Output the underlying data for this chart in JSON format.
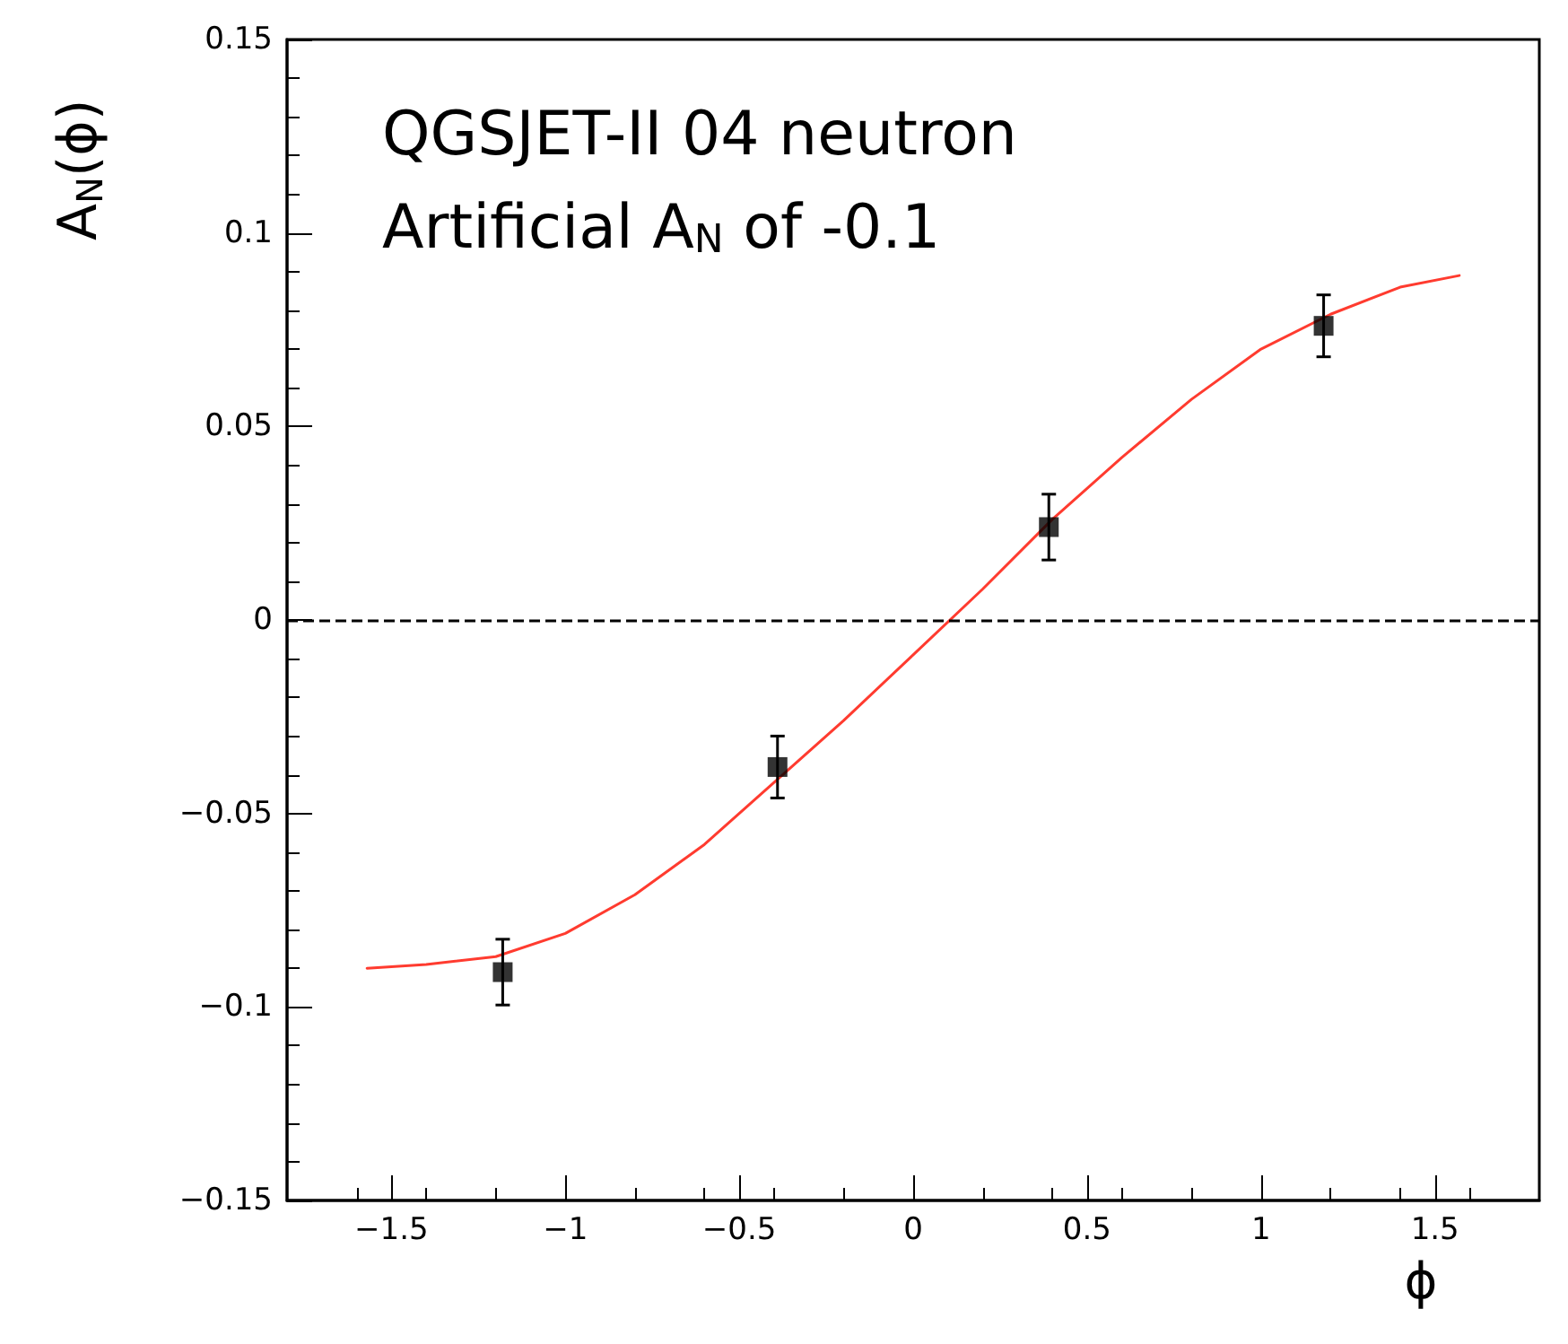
{
  "chart_data": {
    "type": "scatter",
    "xlabel": "ϕ",
    "ylabel": "A$_{N}$(ϕ)",
    "annotations": [
      "QGSJET-II 04 neutron",
      "Artificial A$_{N}$ of -0.1"
    ],
    "series": [
      {
        "color": "#000000",
        "marker": "square",
        "x": [
          -1.18,
          -0.39,
          0.39,
          1.18
        ],
        "values": [
          -0.091,
          -0.038,
          0.024,
          0.076
        ],
        "errors": [
          0.0085,
          0.008,
          0.0085,
          0.008
        ]
      },
      {
        "type": "line",
        "color": "#ff3b2f",
        "marker": "none",
        "line_style": "solid",
        "x": [
          -1.57,
          -1.4,
          -1.2,
          -1.0,
          -0.8,
          -0.6,
          -0.4,
          -0.2,
          0,
          0.2,
          0.4,
          0.6,
          0.8,
          1.0,
          1.2,
          1.4,
          1.57
        ],
        "values": [
          -0.09,
          -0.089,
          -0.087,
          -0.081,
          -0.071,
          -0.058,
          -0.042,
          -0.026,
          -0.009,
          0.008,
          0.026,
          0.042,
          0.057,
          0.07,
          0.079,
          0.086,
          0.089
        ]
      }
    ],
    "xlim": [
      -1.8,
      1.8
    ],
    "xticks": [
      {
        "value": -1.5,
        "label": "−1.5"
      },
      {
        "value": -1,
        "label": "−1"
      },
      {
        "value": -0.5,
        "label": "−0.5"
      },
      0,
      0.5,
      1,
      1.5
    ],
    "ylim": [
      -0.15,
      0.15
    ],
    "yticks": [
      {
        "value": -0.15,
        "label": "−0.15"
      },
      {
        "value": -0.1,
        "label": "−0.1"
      },
      {
        "value": -0.05,
        "label": "−0.05"
      },
      0,
      0.05,
      0.1,
      0.15
    ],
    "ref_lines": [
      {
        "axis": "y",
        "value": 0,
        "color": "#000000",
        "line_style": "dashed"
      }
    ],
    "grid": false
  }
}
